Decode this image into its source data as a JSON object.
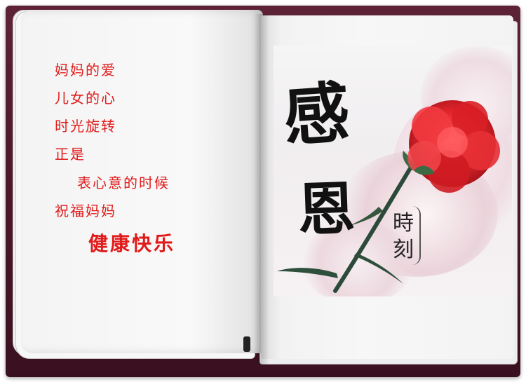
{
  "poem": {
    "lines": [
      "妈妈的爱",
      "儿女的心",
      "时光旋转",
      "正是",
      "表心意的时候",
      "祝福妈妈",
      "健康快乐"
    ]
  },
  "art": {
    "calligraphy_1": "感",
    "calligraphy_2": "恩",
    "seal_1": "時",
    "seal_2": "刻"
  },
  "colors": {
    "cover": "#4a1729",
    "poem_text": "#e11a1a",
    "carnation": "#e3262c",
    "stem": "#2b4a3a"
  }
}
